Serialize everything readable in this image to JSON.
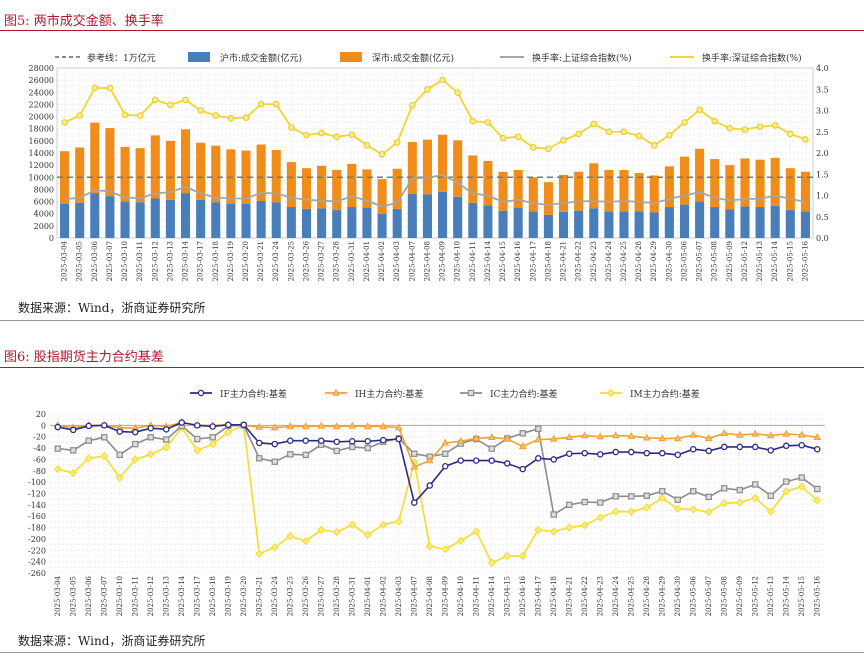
{
  "fig5": {
    "title": "图5:   两市成交金额、换手率",
    "source": "数据来源：Wind，浙商证券研究所"
  },
  "fig6": {
    "title": "图6:   股指期货主力合约基差",
    "source": "数据来源：Wind，浙商证券研究所"
  },
  "colors": {
    "title": "#b2182b",
    "sh": "#4a7ebb",
    "sz": "#f08c1a",
    "sh_turn": "#a6a6a6",
    "sz_turn": "#f3d42e",
    "IF": "#2b2b86",
    "IH": "#f0a030",
    "IC": "#8c8c8c",
    "IM": "#f5dc2a"
  },
  "chart_data": [
    {
      "type": "bar",
      "title": "两市成交金额、换手率",
      "dates": [
        "2025-03-04",
        "2025-03-05",
        "2025-03-06",
        "2025-03-07",
        "2025-03-10",
        "2025-03-11",
        "2025-03-12",
        "2025-03-13",
        "2025-03-14",
        "2025-03-17",
        "2025-03-18",
        "2025-03-19",
        "2025-03-20",
        "2025-03-21",
        "2025-03-24",
        "2025-03-25",
        "2025-03-26",
        "2025-03-27",
        "2025-03-28",
        "2025-03-31",
        "2025-04-01",
        "2025-04-02",
        "2025-04-03",
        "2025-04-07",
        "2025-04-08",
        "2025-04-09",
        "2025-04-10",
        "2025-04-11",
        "2025-04-14",
        "2025-04-15",
        "2025-04-16",
        "2025-04-17",
        "2025-04-18",
        "2025-04-21",
        "2025-04-22",
        "2025-04-23",
        "2025-04-24",
        "2025-04-25",
        "2025-04-28",
        "2025-04-29",
        "2025-04-30",
        "2025-05-06",
        "2025-05-07",
        "2025-05-08",
        "2025-05-09",
        "2025-05-12",
        "2025-05-13",
        "2025-05-14",
        "2025-05-15",
        "2025-05-16"
      ],
      "legend": [
        "参考线：1万亿元",
        "沪市:成交金额(亿元)",
        "深市:成交金额(亿元)",
        "换手率:上证综合指数(%)",
        "换手率:深证综合指数(%)"
      ],
      "reference_line": 10000,
      "y_left": {
        "min": 0,
        "max": 28000,
        "step": 2000,
        "ticks": [
          "0",
          "2000",
          "4000",
          "6000",
          "8000",
          "10000",
          "12000",
          "14000",
          "16000",
          "18000",
          "20000",
          "22000",
          "24000",
          "26000",
          "28000"
        ]
      },
      "y_right": {
        "min": 0,
        "max": 4,
        "step": 0.5,
        "ticks": [
          "0.0",
          "0.5",
          "1.0",
          "1.5",
          "2.0",
          "2.5",
          "3.0",
          "3.5",
          "4.0"
        ]
      },
      "series": [
        {
          "name": "沪市:成交金额(亿元)",
          "type": "stacked-bar",
          "values": [
            5600,
            5800,
            7400,
            6900,
            6000,
            5900,
            6500,
            6300,
            7400,
            6300,
            5900,
            5600,
            5600,
            6100,
            5900,
            5100,
            4800,
            4900,
            4600,
            5100,
            5000,
            4000,
            4800,
            7300,
            7200,
            7600,
            6800,
            5800,
            5400,
            4500,
            5000,
            4400,
            3800,
            4300,
            4500,
            4900,
            4400,
            4400,
            4400,
            4200,
            5100,
            5500,
            6000,
            5100,
            4700,
            5200,
            5100,
            5300,
            4600,
            4400
          ]
        },
        {
          "name": "深市:成交金额(亿元)",
          "type": "stacked-bar",
          "values": [
            8700,
            9100,
            11600,
            11200,
            9000,
            8900,
            10400,
            9700,
            10500,
            9400,
            9300,
            9000,
            8800,
            9300,
            8600,
            7400,
            6700,
            7000,
            6600,
            7100,
            6300,
            5700,
            6600,
            8500,
            9000,
            9400,
            9300,
            7800,
            7300,
            6400,
            6200,
            5600,
            5400,
            6100,
            6400,
            7400,
            6800,
            6800,
            6300,
            6100,
            6700,
            7900,
            8700,
            7900,
            7300,
            7900,
            7800,
            7900,
            6900,
            6500
          ]
        },
        {
          "name": "换手率:上证综合指数(%)",
          "type": "line",
          "axis": "right",
          "values": [
            0.91,
            0.95,
            1.12,
            1.1,
            0.95,
            0.94,
            1.05,
            1.08,
            1.2,
            1.05,
            0.95,
            0.93,
            0.93,
            1.06,
            1.05,
            0.95,
            0.9,
            0.88,
            0.86,
            0.98,
            0.88,
            0.74,
            0.83,
            1.4,
            1.42,
            1.48,
            1.3,
            1.05,
            1.0,
            0.85,
            0.9,
            0.82,
            0.78,
            0.82,
            0.86,
            0.87,
            0.85,
            0.87,
            0.85,
            0.82,
            0.92,
            1.0,
            1.08,
            0.95,
            0.88,
            0.92,
            0.92,
            1.0,
            0.92,
            0.85
          ]
        },
        {
          "name": "换手率:深证综合指数(%)",
          "type": "line",
          "axis": "right",
          "values": [
            2.72,
            2.88,
            3.53,
            3.53,
            2.9,
            2.88,
            3.25,
            3.13,
            3.25,
            3.0,
            2.88,
            2.82,
            2.83,
            3.15,
            3.15,
            2.6,
            2.42,
            2.47,
            2.38,
            2.43,
            2.18,
            1.97,
            2.25,
            3.12,
            3.5,
            3.72,
            3.42,
            2.75,
            2.72,
            2.35,
            2.38,
            2.13,
            2.1,
            2.3,
            2.45,
            2.68,
            2.5,
            2.5,
            2.4,
            2.18,
            2.42,
            2.72,
            3.02,
            2.75,
            2.58,
            2.55,
            2.62,
            2.65,
            2.45,
            2.32
          ]
        }
      ]
    },
    {
      "type": "line",
      "title": "股指期货主力合约基差",
      "dates": [
        "2025-03-04",
        "2025-03-05",
        "2025-03-06",
        "2025-03-07",
        "2025-03-10",
        "2025-03-11",
        "2025-03-12",
        "2025-03-13",
        "2025-03-14",
        "2025-03-17",
        "2025-03-18",
        "2025-03-19",
        "2025-03-20",
        "2025-03-21",
        "2025-03-24",
        "2025-03-25",
        "2025-03-26",
        "2025-03-27",
        "2025-03-28",
        "2025-03-31",
        "2025-04-01",
        "2025-04-02",
        "2025-04-03",
        "2025-04-07",
        "2025-04-08",
        "2025-04-09",
        "2025-04-10",
        "2025-04-11",
        "2025-04-14",
        "2025-04-15",
        "2025-04-16",
        "2025-04-17",
        "2025-04-18",
        "2025-04-21",
        "2025-04-22",
        "2025-04-23",
        "2025-04-24",
        "2025-04-25",
        "2025-04-28",
        "2025-04-29",
        "2025-04-30",
        "2025-05-06",
        "2025-05-07",
        "2025-05-08",
        "2025-05-09",
        "2025-05-12",
        "2025-05-13",
        "2025-05-14",
        "2025-05-15",
        "2025-05-16"
      ],
      "legend": [
        "IF主力合约:基差",
        "IH主力合约:基差",
        "IC主力合约:基差",
        "IM主力合约:基差"
      ],
      "y": {
        "min": -260,
        "max": 20,
        "step": 20,
        "ticks": [
          "20",
          "0",
          "-20",
          "-40",
          "-60",
          "-80",
          "-100",
          "-120",
          "-140",
          "-160",
          "-180",
          "-200",
          "-220",
          "-240",
          "-260"
        ]
      },
      "series": [
        {
          "name": "IF主力合约:基差",
          "marker": "circle",
          "values": [
            -3,
            -8,
            -1,
            0,
            -11,
            -12,
            -5,
            -7,
            5,
            0,
            -2,
            1,
            1,
            -31,
            -33,
            -27,
            -27,
            -27,
            -29,
            -28,
            -28,
            -26,
            -24,
            -136,
            -106,
            -72,
            -62,
            -62,
            -62,
            -67,
            -77,
            -58,
            -60,
            -50,
            -49,
            -51,
            -47,
            -47,
            -49,
            -49,
            -52,
            -42,
            -45,
            -38,
            -38,
            -38,
            -44,
            -36,
            -35,
            -42
          ]
        },
        {
          "name": "IH主力合约:基差",
          "marker": "triangle",
          "values": [
            0,
            -4,
            0,
            0,
            -4,
            -5,
            0,
            -2,
            5,
            0,
            0,
            1,
            0,
            -3,
            -4,
            -2,
            -2,
            -1,
            -2,
            -1,
            -2,
            -2,
            -4,
            -73,
            -62,
            -31,
            -28,
            -23,
            -21,
            -24,
            -37,
            -25,
            -24,
            -21,
            -18,
            -20,
            -18,
            -19,
            -22,
            -23,
            -23,
            -17,
            -23,
            -14,
            -17,
            -15,
            -18,
            -15,
            -17,
            -21
          ]
        },
        {
          "name": "IC主力合约:基差",
          "marker": "square",
          "values": [
            -41,
            -44,
            -27,
            -21,
            -52,
            -33,
            -21,
            -25,
            -1,
            -24,
            -21,
            -1,
            0,
            -58,
            -64,
            -51,
            -52,
            -34,
            -45,
            -38,
            -40,
            -29,
            -23,
            -50,
            -55,
            -50,
            -32,
            -24,
            -41,
            -23,
            -14,
            -6,
            -157,
            -140,
            -135,
            -136,
            -125,
            -125,
            -124,
            -116,
            -131,
            -116,
            -126,
            -111,
            -114,
            -104,
            -124,
            -99,
            -92,
            -112
          ]
        },
        {
          "name": "IM主力合约:基差",
          "marker": "diamond",
          "values": [
            -77,
            -84,
            -58,
            -54,
            -92,
            -60,
            -51,
            -39,
            -4,
            -44,
            -33,
            -12,
            0,
            -226,
            -215,
            -195,
            -204,
            -184,
            -188,
            -175,
            -193,
            -175,
            -169,
            -65,
            -213,
            -218,
            -203,
            -187,
            -242,
            -230,
            -230,
            -184,
            -187,
            -180,
            -176,
            -162,
            -152,
            -152,
            -145,
            -128,
            -147,
            -148,
            -153,
            -137,
            -136,
            -128,
            -152,
            -116,
            -108,
            -132
          ]
        }
      ]
    }
  ]
}
